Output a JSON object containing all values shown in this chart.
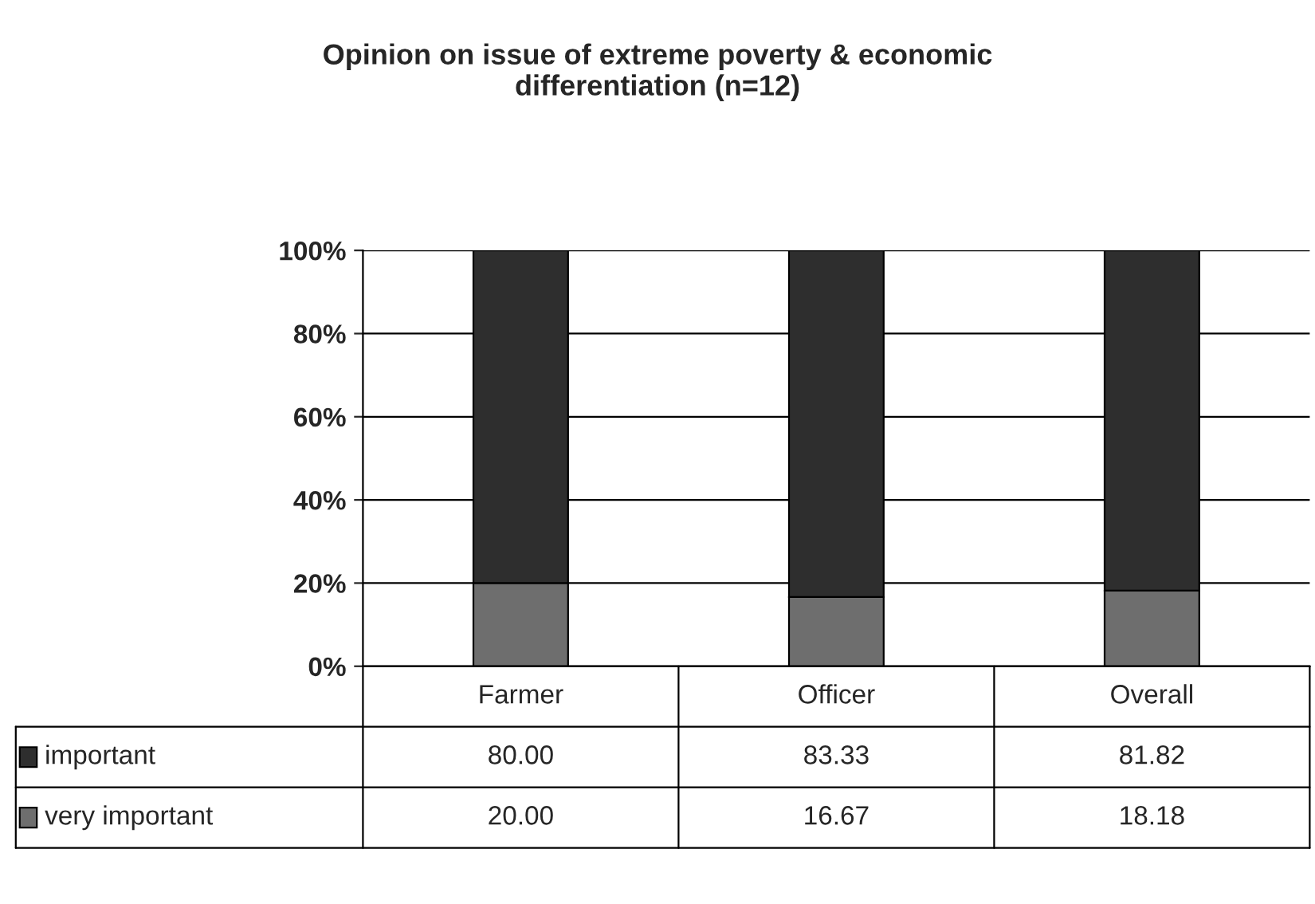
{
  "chart_data": {
    "type": "bar",
    "title": "Opinion on issue of extreme poverty & economic\ndifferentiation (n=12)",
    "categories": [
      "Farmer",
      "Officer",
      "Overall"
    ],
    "stacked": true,
    "series": [
      {
        "name": "very important",
        "color": "#6e6e6e",
        "values": [
          20.0,
          16.67,
          18.18
        ],
        "value_labels": [
          "20.00",
          "16.67",
          "18.18"
        ]
      },
      {
        "name": "important",
        "color": "#2e2e2e",
        "values": [
          80.0,
          83.33,
          81.82
        ],
        "value_labels": [
          "80.00",
          "83.33",
          "81.82"
        ]
      }
    ],
    "ylim": [
      0,
      100
    ],
    "yticks": [
      {
        "value": 0,
        "label": "0%"
      },
      {
        "value": 20,
        "label": "20%"
      },
      {
        "value": 40,
        "label": "40%"
      },
      {
        "value": 60,
        "label": "60%"
      },
      {
        "value": 80,
        "label": "80%"
      },
      {
        "value": 100,
        "label": "100%"
      }
    ],
    "grid": "y",
    "legend": "bottom"
  }
}
